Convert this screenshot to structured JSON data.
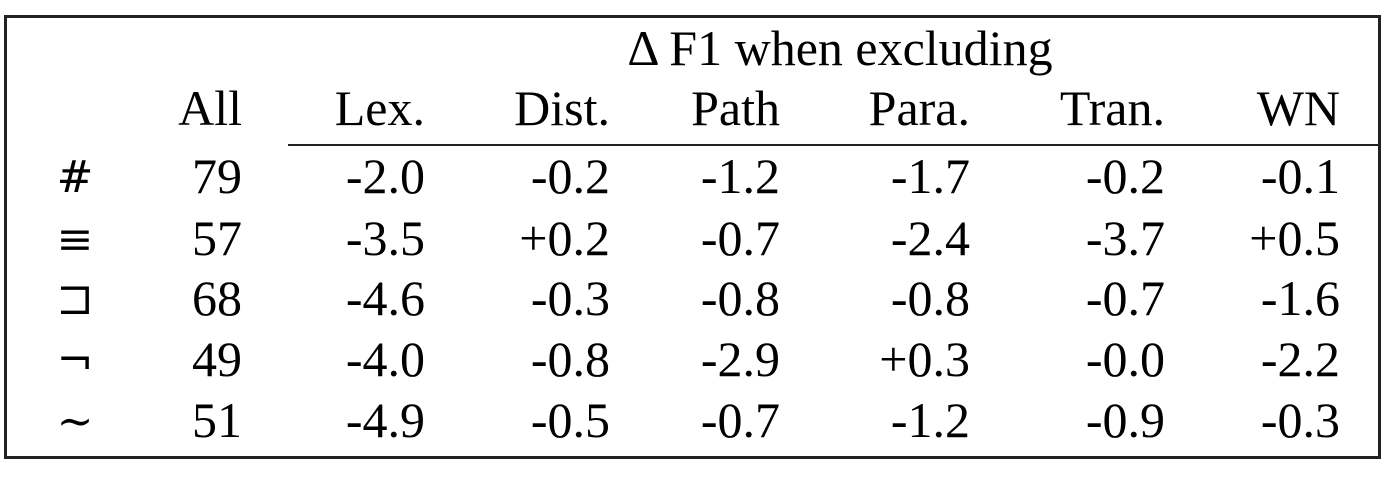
{
  "table": {
    "span_header": "Δ F1 when excluding",
    "columns": [
      "All",
      "Lex.",
      "Dist.",
      "Path",
      "Para.",
      "Tran.",
      "WN"
    ],
    "rows": [
      {
        "label": "#",
        "values": [
          "79",
          "-2.0",
          "-0.2",
          "-1.2",
          "-1.7",
          "-0.2",
          "-0.1"
        ]
      },
      {
        "label": "≡",
        "values": [
          "57",
          "-3.5",
          "+0.2",
          "-0.7",
          "-2.4",
          "-3.7",
          "+0.5"
        ]
      },
      {
        "label": "⊐",
        "values": [
          "68",
          "-4.6",
          "-0.3",
          "-0.8",
          "-0.8",
          "-0.7",
          "-1.6"
        ]
      },
      {
        "label": "¬",
        "values": [
          "49",
          "-4.0",
          "-0.8",
          "-2.9",
          "+0.3",
          "-0.0",
          "-2.2"
        ]
      },
      {
        "label": "∼",
        "values": [
          "51",
          "-4.9",
          "-0.5",
          "-0.7",
          "-1.2",
          "-0.9",
          "-0.3"
        ]
      }
    ]
  }
}
